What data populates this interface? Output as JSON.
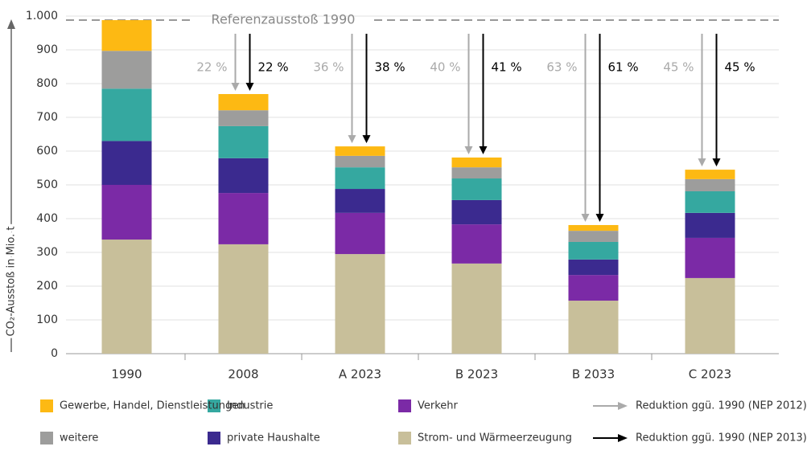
{
  "chart_data": {
    "type": "stacked_bar",
    "y_label": "CO₂-Ausstoß in Mio. t",
    "categories": [
      "1990",
      "2008",
      "A 2023",
      "B 2023",
      "B 2033",
      "C 2023"
    ],
    "series": [
      {
        "name": "Strom- und Wärmeerzeugung",
        "color": "#c8bf9a",
        "values": [
          338,
          324,
          295,
          267,
          157,
          224
        ]
      },
      {
        "name": "Verkehr",
        "color": "#7b2aa6",
        "values": [
          162,
          152,
          122,
          116,
          76,
          119
        ]
      },
      {
        "name": "private Haushalte",
        "color": "#3b2a8f",
        "values": [
          130,
          103,
          71,
          72,
          46,
          74
        ]
      },
      {
        "name": "Industrie",
        "color": "#35a8a0",
        "values": [
          155,
          95,
          64,
          64,
          52,
          64
        ]
      },
      {
        "name": "weitere",
        "color": "#9d9d9c",
        "values": [
          112,
          47,
          34,
          33,
          33,
          36
        ]
      },
      {
        "name": "Gewerbe, Handel, Dienstleistungen",
        "color": "#fdb913",
        "values": [
          91,
          48,
          28,
          29,
          17,
          28
        ]
      }
    ],
    "reference": {
      "value": 988,
      "label": "Referenzausstoß 1990"
    },
    "reductions": [
      {
        "name": "Reduktion ggü. 1990 (NEP 2012)",
        "color": "#aaaaaa",
        "values": [
          null,
          22,
          36,
          40,
          63,
          45
        ],
        "value_labels": [
          null,
          "22 %",
          "36 %",
          "40 %",
          "63 %",
          "45 %"
        ]
      },
      {
        "name": "Reduktion ggü. 1990 (NEP 2013)",
        "color": "#000000",
        "values": [
          null,
          22,
          38,
          41,
          61,
          45
        ],
        "value_labels": [
          null,
          "22 %",
          "38 %",
          "41 %",
          "61 %",
          "45 %"
        ]
      }
    ],
    "ylim": [
      0,
      1000
    ],
    "yticks": [
      0,
      100,
      200,
      300,
      400,
      500,
      600,
      700,
      800,
      900,
      {
        "value": 1000,
        "label": "1.000"
      }
    ],
    "grid": true
  }
}
